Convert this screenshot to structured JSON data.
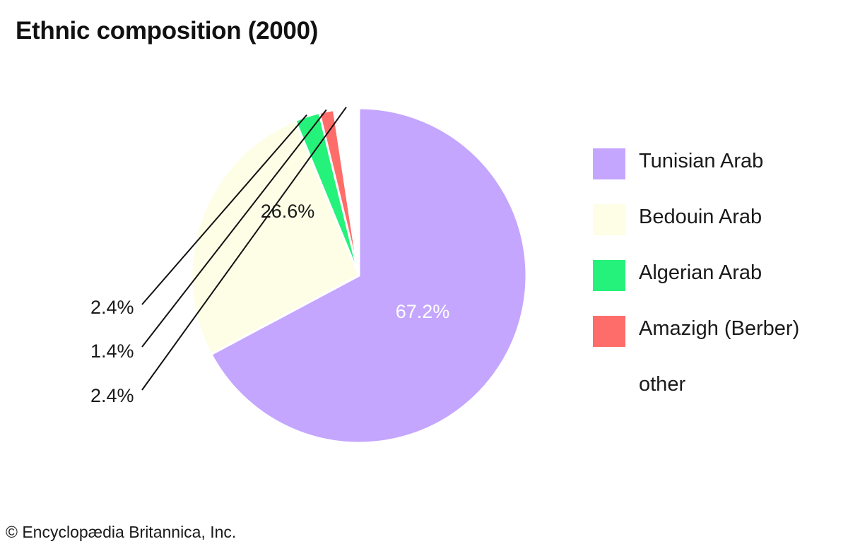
{
  "chart_data": {
    "type": "pie",
    "title": "Ethnic composition (2000)",
    "slices": [
      {
        "name": "Tunisian Arab",
        "value": 67.2,
        "label": "67.2%",
        "color": "#c4a6fe"
      },
      {
        "name": "Bedouin Arab",
        "value": 26.6,
        "label": "26.6%",
        "color": "#fefee6"
      },
      {
        "name": "Algerian Arab",
        "value": 2.4,
        "label": "2.4%",
        "color": "#25f27a"
      },
      {
        "name": "Amazigh (Berber)",
        "value": 1.4,
        "label": "1.4%",
        "color": "#fe6d69"
      },
      {
        "name": "other",
        "value": 2.4,
        "label": "2.4%",
        "color": "#ffffff"
      }
    ],
    "legend_position": "right"
  },
  "credit": "© Encyclopædia Britannica, Inc."
}
